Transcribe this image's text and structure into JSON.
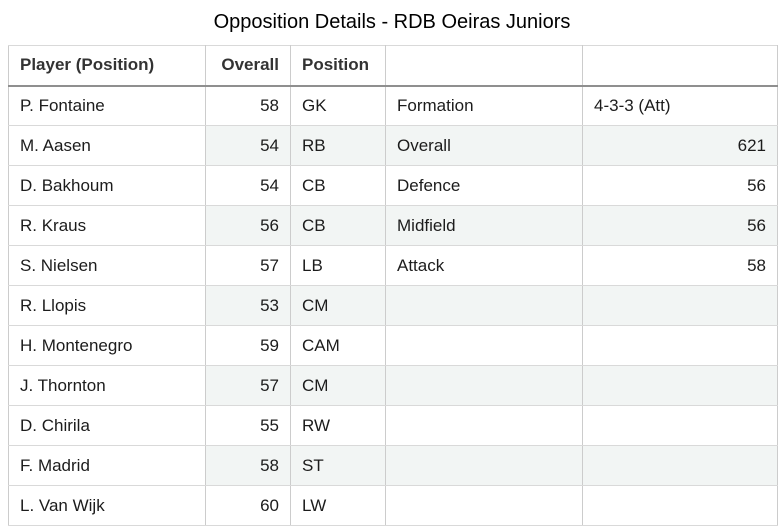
{
  "title": "Opposition Details - RDB Oeiras Juniors",
  "colors": {
    "stripe": "#f2f5f4",
    "header_rule": "#8f8f8f",
    "grid_line": "#cccccc",
    "text": "#1c1c1c"
  },
  "table": {
    "headers": {
      "player": "Player (Position)",
      "overall": "Overall",
      "position": "Position",
      "col4": "",
      "col5": ""
    },
    "players": [
      {
        "name": "P. Fontaine",
        "overall": "58",
        "position": "GK"
      },
      {
        "name": "M. Aasen",
        "overall": "54",
        "position": "RB"
      },
      {
        "name": "D. Bakhoum",
        "overall": "54",
        "position": "CB"
      },
      {
        "name": "R. Kraus",
        "overall": "56",
        "position": "CB"
      },
      {
        "name": "S. Nielsen",
        "overall": "57",
        "position": "LB"
      },
      {
        "name": "R. Llopis",
        "overall": "53",
        "position": "CM"
      },
      {
        "name": "H. Montenegro",
        "overall": "59",
        "position": "CAM"
      },
      {
        "name": "J. Thornton",
        "overall": "57",
        "position": "CM"
      },
      {
        "name": "D. Chirila",
        "overall": "55",
        "position": "RW"
      },
      {
        "name": "F. Madrid",
        "overall": "58",
        "position": "ST"
      },
      {
        "name": "L. Van Wijk",
        "overall": "60",
        "position": "LW"
      }
    ],
    "stats": [
      {
        "label": "Formation",
        "value": "4-3-3 (Att)",
        "value_align": "left"
      },
      {
        "label": "Overall",
        "value": "621",
        "value_align": "right"
      },
      {
        "label": "Defence",
        "value": "56",
        "value_align": "right"
      },
      {
        "label": "Midfield",
        "value": "56",
        "value_align": "right"
      },
      {
        "label": "Attack",
        "value": "58",
        "value_align": "right"
      }
    ]
  }
}
